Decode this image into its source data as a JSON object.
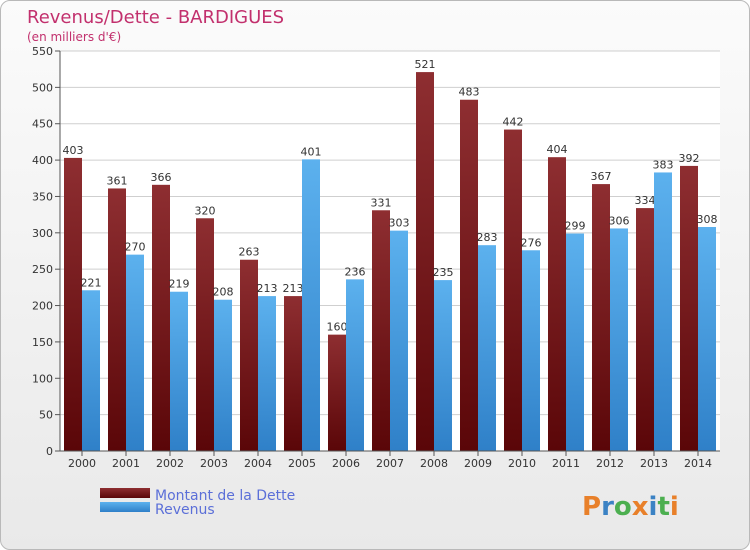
{
  "chart_data": {
    "type": "bar",
    "title": "Revenus/Dette - BARDIGUES",
    "subtitle": "(en milliers d'€)",
    "categories": [
      "2000",
      "2001",
      "2002",
      "2003",
      "2004",
      "2005",
      "2006",
      "2007",
      "2008",
      "2009",
      "2010",
      "2011",
      "2012",
      "2013",
      "2014"
    ],
    "series": [
      {
        "name": "Montant de la Dette",
        "color": "#7a1f22",
        "values": [
          403,
          361,
          366,
          320,
          263,
          213,
          160,
          331,
          521,
          483,
          442,
          404,
          367,
          334,
          392
        ]
      },
      {
        "name": "Revenus",
        "color": "#4ea3e6",
        "values": [
          221,
          270,
          219,
          208,
          213,
          401,
          236,
          303,
          235,
          283,
          276,
          299,
          306,
          383,
          308
        ]
      }
    ],
    "yticks": [
      0,
      50,
      100,
      150,
      200,
      250,
      300,
      350,
      400,
      450,
      500,
      550
    ],
    "ylim": [
      0,
      550
    ],
    "grid": true,
    "legend": "bottom-left"
  },
  "logo": {
    "letters": [
      "P",
      "r",
      "o",
      "x",
      "i",
      "t",
      "i"
    ],
    "colors": [
      "#e8802a",
      "#3b82c4",
      "#4caf50",
      "#e8802a",
      "#3b82c4",
      "#4caf50",
      "#e8802a"
    ]
  }
}
